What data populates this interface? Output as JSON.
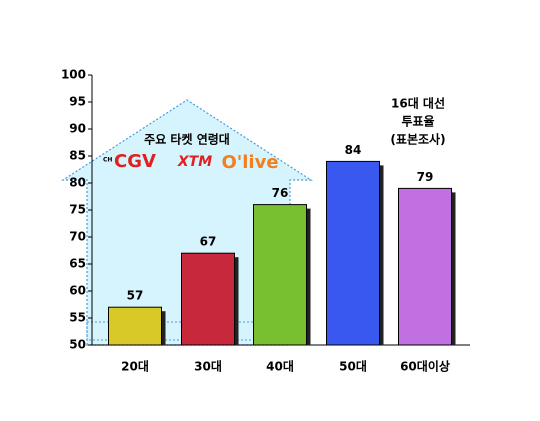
{
  "chart_data": {
    "type": "bar",
    "categories": [
      "20대",
      "30대",
      "40대",
      "50대",
      "60대이상"
    ],
    "values": [
      57,
      67,
      76,
      84,
      79
    ],
    "colors": [
      "#d8c828",
      "#c8283c",
      "#78c030",
      "#3858f0",
      "#c070e0"
    ],
    "ylim": [
      50,
      100
    ],
    "yticks": [
      50,
      55,
      60,
      65,
      70,
      75,
      80,
      85,
      90,
      95,
      100
    ],
    "annotations": {
      "target": "주요 타켓 연령대",
      "channel": "CH",
      "logos": [
        "CGV",
        "XTM",
        "O'live"
      ],
      "note": [
        "16대 대선",
        "투표율",
        "(표본조사)"
      ]
    }
  }
}
